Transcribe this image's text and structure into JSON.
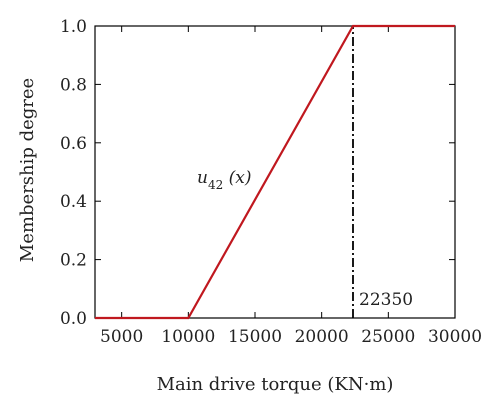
{
  "chart_data": {
    "type": "line",
    "xlabel": "Main drive torque (KN·m)",
    "ylabel": "Membership degree",
    "xlim": [
      3000,
      30000
    ],
    "ylim": [
      0,
      1.0
    ],
    "x_ticks": [
      5000,
      10000,
      15000,
      20000,
      25000,
      30000
    ],
    "y_ticks": [
      "0.0",
      "0.2",
      "0.4",
      "0.6",
      "0.8",
      "1.0"
    ],
    "series": [
      {
        "name": "u42 (x)",
        "color": "#c0181f",
        "x": [
          3000,
          10000,
          22350,
          30000
        ],
        "y": [
          0,
          0,
          1,
          1
        ]
      }
    ],
    "vline": {
      "x": 22350,
      "style": "dash-dot",
      "color": "#000000"
    },
    "annotations": {
      "curve_label": {
        "main": "u",
        "sub": "42",
        "rest": " (x)"
      },
      "vline_label": "22350"
    },
    "grid": false,
    "legend": "none"
  }
}
